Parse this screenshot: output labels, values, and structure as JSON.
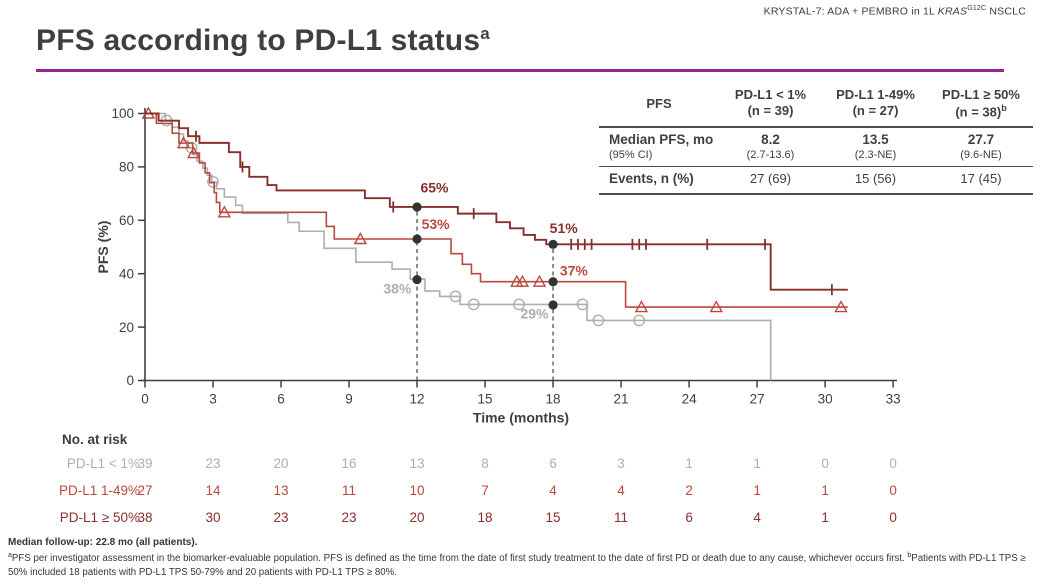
{
  "header": {
    "prefix": "KRYSTAL-7: ADA + PEMBRO in 1L ",
    "gene": "KRAS",
    "gene_sup": "G12C",
    "suffix": " NSCLC"
  },
  "title": {
    "text": "PFS according to PD-L1 status",
    "superscript": "a"
  },
  "colors": {
    "accent_purple": "#93278F",
    "title_gray": "#3F3F3F",
    "axis": "#3F3F3F",
    "dot": "#333333",
    "dashed": "#5A5A5A",
    "series_lt1": "#AFAEAC",
    "series_1_49": "#B9493E",
    "series_ge50": "#862F2B"
  },
  "stats_table": {
    "col0_header": "PFS",
    "columns": [
      {
        "label": "PD-L1 < 1%",
        "n": "(n = 39)",
        "sup": ""
      },
      {
        "label": "PD-L1 1-49%",
        "n": "(n = 27)",
        "sup": ""
      },
      {
        "label": "PD-L1 ≥ 50%",
        "n": "(n = 38)",
        "sup": "b"
      }
    ],
    "rows": [
      {
        "label": "Median PFS, mo",
        "sublabel": "(95% CI)",
        "values": [
          "8.2",
          "13.5",
          "27.7"
        ],
        "subvalues": [
          "(2.7-13.6)",
          "(2.3-NE)",
          "(9.6-NE)"
        ]
      },
      {
        "label": "Events, n (%)",
        "values": [
          "27 (69)",
          "15 (56)",
          "17 (45)"
        ]
      }
    ]
  },
  "chart_data": {
    "type": "line",
    "subtype": "kaplan-meier-step",
    "title": "PFS according to PD-L1 status",
    "xlabel": "Time (months)",
    "ylabel": "PFS (%)",
    "xlim": [
      0,
      33
    ],
    "ylim": [
      0,
      100
    ],
    "xticks": [
      0,
      3,
      6,
      9,
      12,
      15,
      18,
      21,
      24,
      27,
      30,
      33
    ],
    "yticks": [
      0,
      20,
      40,
      60,
      80,
      100
    ],
    "grid": false,
    "legend_position": "none",
    "series": [
      {
        "name": "PD-L1 < 1%",
        "color": "#AFAEAC",
        "marker": "circle",
        "steps": [
          [
            0,
            100
          ],
          [
            0.9,
            97.4
          ],
          [
            1.2,
            94.9
          ],
          [
            1.5,
            92.3
          ],
          [
            1.7,
            89.7
          ],
          [
            1.9,
            87.2
          ],
          [
            2.1,
            84.6
          ],
          [
            2.3,
            82.1
          ],
          [
            2.55,
            79.5
          ],
          [
            2.75,
            76.9
          ],
          [
            2.95,
            74.4
          ],
          [
            3.15,
            71.8
          ],
          [
            3.5,
            68.7
          ],
          [
            4.0,
            65.6
          ],
          [
            4.3,
            62.6
          ],
          [
            6.3,
            59.2
          ],
          [
            6.8,
            55.9
          ],
          [
            7.9,
            49.5
          ],
          [
            9.3,
            44.3
          ],
          [
            10.9,
            41.7
          ],
          [
            11.7,
            38
          ],
          [
            12.35,
            33.5
          ],
          [
            13.0,
            31.5
          ],
          [
            13.9,
            28.5
          ],
          [
            19.5,
            22.5
          ],
          [
            27.6,
            22.5
          ],
          [
            27.6,
            0
          ]
        ],
        "censors": [
          [
            0.95,
            97.4
          ],
          [
            2.05,
            87.2
          ],
          [
            3.0,
            74.4
          ],
          [
            13.7,
            31.5
          ],
          [
            14.5,
            28.5
          ],
          [
            16.5,
            28.5
          ],
          [
            19.3,
            28.5
          ],
          [
            20.0,
            22.5
          ],
          [
            21.8,
            22.5
          ]
        ]
      },
      {
        "name": "PD-L1 1-49%",
        "color": "#B9493E",
        "marker": "triangle",
        "steps": [
          [
            0,
            100
          ],
          [
            0.5,
            96.3
          ],
          [
            1.2,
            92.6
          ],
          [
            1.5,
            88.9
          ],
          [
            2.1,
            85.2
          ],
          [
            2.4,
            81.5
          ],
          [
            2.65,
            77.8
          ],
          [
            2.85,
            74.1
          ],
          [
            3.05,
            70.4
          ],
          [
            3.15,
            66.7
          ],
          [
            3.3,
            63
          ],
          [
            8.0,
            57.7
          ],
          [
            8.35,
            53
          ],
          [
            13.5,
            47.5
          ],
          [
            14.0,
            43.5
          ],
          [
            14.4,
            40
          ],
          [
            14.8,
            37
          ],
          [
            21.2,
            27.5
          ],
          [
            31,
            27.5
          ]
        ],
        "censors": [
          [
            0.15,
            100
          ],
          [
            1.7,
            88.9
          ],
          [
            2.15,
            85.2
          ],
          [
            3.5,
            63
          ],
          [
            9.5,
            53
          ],
          [
            16.4,
            37
          ],
          [
            16.65,
            37
          ],
          [
            17.4,
            37
          ],
          [
            21.9,
            27.5
          ],
          [
            25.2,
            27.5
          ],
          [
            30.7,
            27.5
          ]
        ]
      },
      {
        "name": "PD-L1 ≥ 50%",
        "color": "#862F2B",
        "marker": "tick",
        "steps": [
          [
            0,
            100
          ],
          [
            0.6,
            97.3
          ],
          [
            1.5,
            94.5
          ],
          [
            1.9,
            91.5
          ],
          [
            2.4,
            89
          ],
          [
            3.7,
            85.5
          ],
          [
            4.2,
            80
          ],
          [
            4.6,
            76.3
          ],
          [
            5.4,
            73.2
          ],
          [
            5.8,
            71.2
          ],
          [
            9.7,
            68.3
          ],
          [
            10.8,
            65
          ],
          [
            13.8,
            62.5
          ],
          [
            15.5,
            59.3
          ],
          [
            16.1,
            57
          ],
          [
            16.7,
            54.5
          ],
          [
            17.2,
            52.7
          ],
          [
            17.7,
            51
          ],
          [
            27.6,
            34
          ],
          [
            31,
            34
          ]
        ],
        "censors": [
          [
            2.25,
            91.5
          ],
          [
            4.3,
            80
          ],
          [
            10.95,
            65
          ],
          [
            14.5,
            62.5
          ],
          [
            18.8,
            51
          ],
          [
            19.1,
            51
          ],
          [
            19.4,
            51
          ],
          [
            19.7,
            51
          ],
          [
            21.5,
            51
          ],
          [
            21.8,
            51
          ],
          [
            22.1,
            51
          ],
          [
            24.8,
            51
          ],
          [
            27.35,
            51
          ],
          [
            30.3,
            34
          ]
        ]
      }
    ],
    "reference_lines_x": [
      {
        "x": 12,
        "top": 65
      },
      {
        "x": 18,
        "top": 51
      }
    ],
    "landmark_dots": [
      [
        12,
        65
      ],
      [
        12,
        53
      ],
      [
        12,
        37.8
      ],
      [
        18,
        51
      ],
      [
        18,
        37
      ],
      [
        18,
        28.3
      ]
    ],
    "annotations": [
      {
        "text": "65%",
        "x": 12.15,
        "y": 70.5,
        "color": "#862F2B",
        "anchor": "start"
      },
      {
        "text": "53%",
        "x": 12.2,
        "y": 56.8,
        "color": "#B9493E",
        "anchor": "start"
      },
      {
        "text": "38%",
        "x": 11.75,
        "y": 32.5,
        "color": "#AFAEAC",
        "anchor": "end"
      },
      {
        "text": "51%",
        "x": 17.85,
        "y": 55.2,
        "color": "#862F2B",
        "anchor": "start"
      },
      {
        "text": "37%",
        "x": 18.3,
        "y": 39.3,
        "color": "#B9493E",
        "anchor": "start"
      },
      {
        "text": "29%",
        "x": 17.8,
        "y": 23.2,
        "color": "#AFAEAC",
        "anchor": "end"
      }
    ]
  },
  "risk_table": {
    "heading": "No. at risk",
    "timepoints": [
      0,
      3,
      6,
      9,
      12,
      15,
      18,
      21,
      24,
      27,
      30,
      33
    ],
    "rows": [
      {
        "label": "PD-L1 < 1%",
        "color": "#AFAEAC",
        "values": [
          39,
          23,
          20,
          16,
          13,
          8,
          6,
          3,
          1,
          1,
          0,
          0
        ]
      },
      {
        "label": "PD-L1 1-49%",
        "color": "#B9493E",
        "values": [
          27,
          14,
          13,
          11,
          10,
          7,
          4,
          4,
          2,
          1,
          1,
          0
        ]
      },
      {
        "label": "PD-L1 ≥ 50%",
        "color": "#862F2B",
        "values": [
          38,
          30,
          23,
          23,
          20,
          18,
          15,
          11,
          6,
          4,
          1,
          0
        ]
      }
    ]
  },
  "footnotes": {
    "median_followup": "Median follow-up: 22.8 mo (all patients).",
    "a_sup": "a",
    "a_text": "PFS per investigator assessment in the biomarker-evaluable population. PFS is defined as the time from the date of first study treatment to the date of first PD or death due to any cause, whichever occurs first. ",
    "b_sup": "b",
    "b_text": "Patients with PD-L1 TPS ≥ 50% included 18 patients with PD-L1 TPS 50-79% and 20 patients with PD-L1 TPS ≥ 80%."
  }
}
